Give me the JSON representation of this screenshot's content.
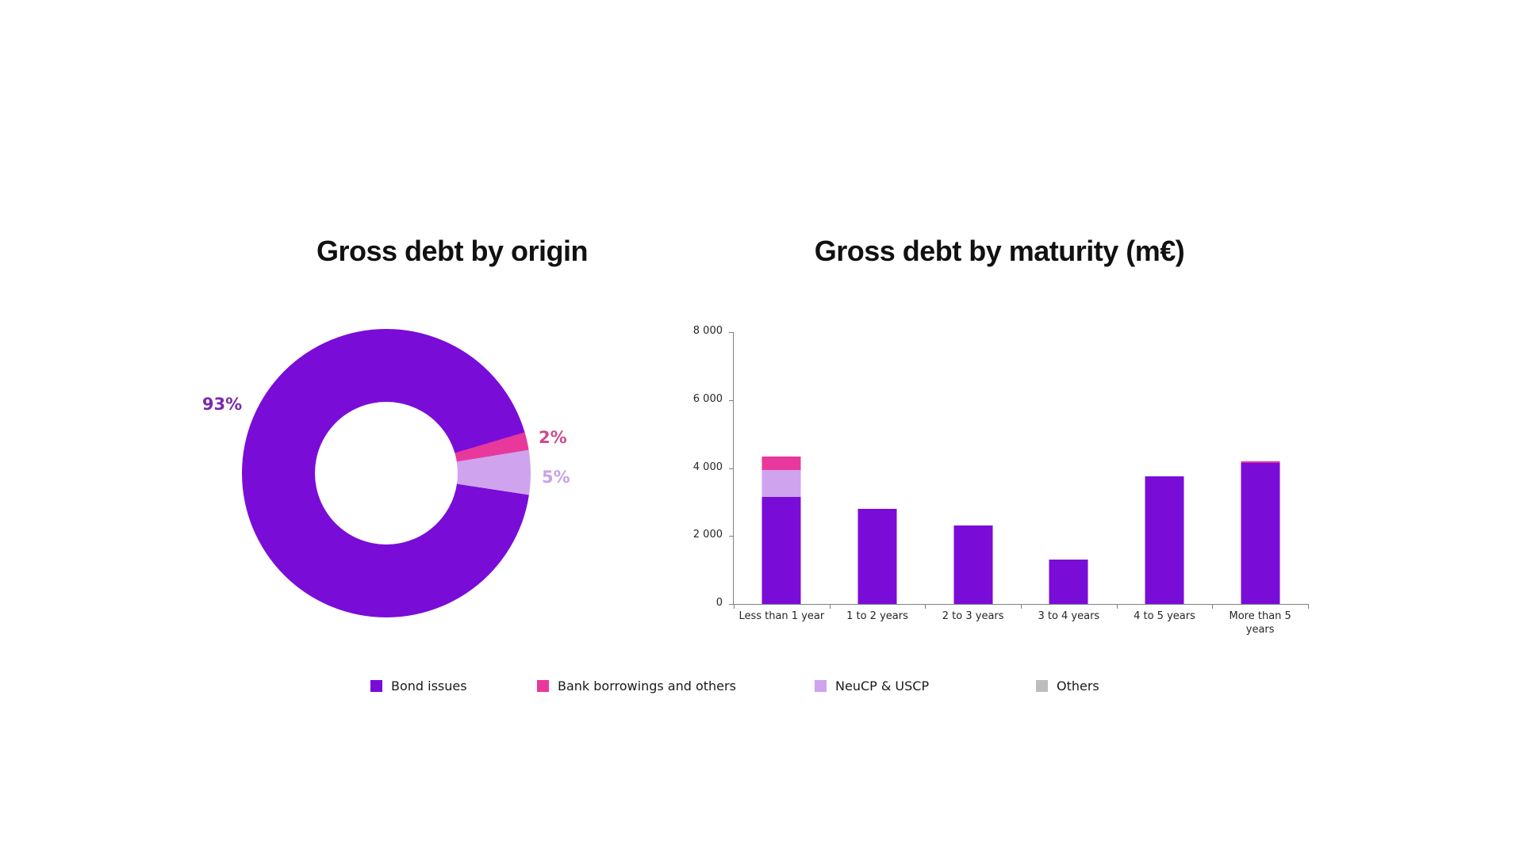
{
  "page": {
    "background": "#ffffff"
  },
  "colors": {
    "purple": "#7A0CD8",
    "pink": "#E8389B",
    "lavender": "#D0A3EE",
    "gray": "#BDBDBD",
    "axis": "#808080",
    "label_text": "#262626",
    "title_text": "#111111"
  },
  "chart_data": [
    {
      "type": "pie",
      "donut": true,
      "title": "Gross debt by origin",
      "unit": "%",
      "segments": [
        {
          "label": "Bond issues",
          "value": 93,
          "color": "#7A0CD8",
          "data_label": "93%",
          "data_label_color": "#7A2BA8"
        },
        {
          "label": "Bank borrowings and others",
          "value": 2,
          "color": "#E8389B",
          "data_label": "2%",
          "data_label_color": "#D04A8C"
        },
        {
          "label": "NeuCP & USCP",
          "value": 5,
          "color": "#D0A3EE",
          "data_label": "5%",
          "data_label_color": "#C9A2E6"
        },
        {
          "label": "Others",
          "value": 0,
          "color": "#BDBDBD",
          "data_label": "",
          "data_label_color": "#BDBDBD"
        }
      ],
      "start_angle_from_top_deg": 73.5,
      "draw_order": [
        "Bank borrowings and others",
        "NeuCP & USCP",
        "Bond issues"
      ],
      "legend_position": "bottom"
    },
    {
      "type": "bar",
      "stacked": true,
      "title": "Gross debt by maturity (m€)",
      "categories": [
        "Less than 1 year",
        "1 to 2 years",
        "2 to 3 years",
        "3 to 4 years",
        "4 to 5 years",
        "More than 5\nyears"
      ],
      "series": [
        {
          "name": "Bond issues",
          "color": "#7A0CD8",
          "values": [
            3150,
            2800,
            2300,
            1300,
            3750,
            4150
          ]
        },
        {
          "name": "NeuCP & USCP",
          "color": "#D0A3EE",
          "values": [
            800,
            0,
            0,
            0,
            0,
            0
          ]
        },
        {
          "name": "Bank borrowings and others",
          "color": "#E8389B",
          "values": [
            400,
            0,
            0,
            0,
            0,
            50
          ]
        }
      ],
      "xlabel": "",
      "ylabel": "",
      "ylim": [
        0,
        8000
      ],
      "ytick_values": [
        0,
        2000,
        4000,
        6000,
        8000
      ],
      "ytick_labels": [
        "0",
        "2 000",
        "4 000",
        "6 000",
        "8 000"
      ],
      "grid": false,
      "legend_position": "bottom"
    }
  ],
  "legend": {
    "items": [
      {
        "label": "Bond issues",
        "color": "#7A0CD8"
      },
      {
        "label": "Bank borrowings and others",
        "color": "#E8389B"
      },
      {
        "label": "NeuCP & USCP",
        "color": "#D0A3EE"
      },
      {
        "label": "Others",
        "color": "#BDBDBD"
      }
    ]
  }
}
